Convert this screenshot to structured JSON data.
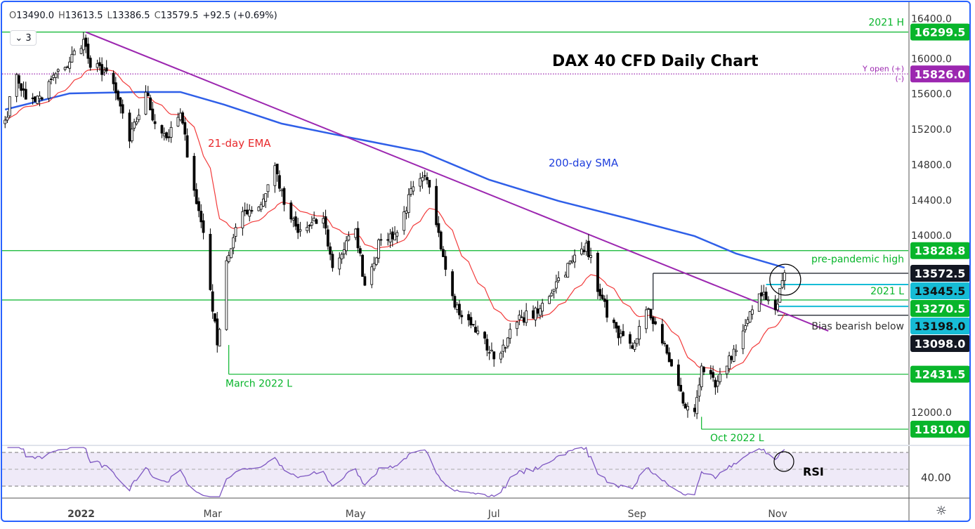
{
  "header": {
    "open_label": "O",
    "open": "13490.0",
    "high_label": "H",
    "high": "13613.5",
    "low_label": "L",
    "low": "13386.5",
    "close_label": "C",
    "close": "13579.5",
    "change": "+92.5 (+0.69%)",
    "indicators_count": "3"
  },
  "colors": {
    "green": "#08b52b",
    "cyan": "#16bcd6",
    "purple": "#9c27b0",
    "black": "#131722",
    "ema": "#f23b3b",
    "sma": "#2f5fe8",
    "trendline": "#9c27b0",
    "rsi": "#7e57c2",
    "rsi_band": "#efeaf8"
  },
  "chart_data": {
    "type": "candlestick",
    "title": "DAX 40 CFD Daily Chart",
    "last_candle": {
      "date": "2022-11-04",
      "open": 13490.0,
      "high": 13613.5,
      "low": 13386.5,
      "close": 13579.5
    },
    "close_path": [
      [
        "2021-12-01",
        15304
      ],
      [
        "2021-12-06",
        15820
      ],
      [
        "2021-12-10",
        15540
      ],
      [
        "2021-12-17",
        15540
      ],
      [
        "2021-12-20",
        15740
      ],
      [
        "2021-12-27",
        15900
      ],
      [
        "2022-01-04",
        16217
      ],
      [
        "2022-01-07",
        15900
      ],
      [
        "2022-01-14",
        15860
      ],
      [
        "2022-01-21",
        15383
      ],
      [
        "2022-01-24",
        15066
      ],
      [
        "2022-01-31",
        15620
      ],
      [
        "2022-02-04",
        15264
      ],
      [
        "2022-02-10",
        15105
      ],
      [
        "2022-02-15",
        15383
      ],
      [
        "2022-02-21",
        14510
      ],
      [
        "2022-02-25",
        14033
      ],
      [
        "2022-03-03",
        12762
      ],
      [
        "2022-03-07",
        13715
      ],
      [
        "2022-03-14",
        14270
      ],
      [
        "2022-03-22",
        14350
      ],
      [
        "2022-03-28",
        14790
      ],
      [
        "2022-04-01",
        14350
      ],
      [
        "2022-04-07",
        14033
      ],
      [
        "2022-04-18",
        14192
      ],
      [
        "2022-04-22",
        13636
      ],
      [
        "2022-05-02",
        14073
      ],
      [
        "2022-05-06",
        13437
      ],
      [
        "2022-05-13",
        13954
      ],
      [
        "2022-05-20",
        14033
      ],
      [
        "2022-05-27",
        14550
      ],
      [
        "2022-06-02",
        14629
      ],
      [
        "2022-06-07",
        14033
      ],
      [
        "2022-06-13",
        13318
      ],
      [
        "2022-06-17",
        13080
      ],
      [
        "2022-06-24",
        12921
      ],
      [
        "2022-07-01",
        12604
      ],
      [
        "2022-07-07",
        12842
      ],
      [
        "2022-07-13",
        13080
      ],
      [
        "2022-07-20",
        13120
      ],
      [
        "2022-07-28",
        13477
      ],
      [
        "2022-08-04",
        13715
      ],
      [
        "2022-08-10",
        13914
      ],
      [
        "2022-08-16",
        13318
      ],
      [
        "2022-08-24",
        12842
      ],
      [
        "2022-08-30",
        12723
      ],
      [
        "2022-09-05",
        13160
      ],
      [
        "2022-09-09",
        13000
      ],
      [
        "2022-09-16",
        12524
      ],
      [
        "2022-09-22",
        12047
      ],
      [
        "2022-09-26",
        12008
      ],
      [
        "2022-09-29",
        12524
      ],
      [
        "2022-10-05",
        12286
      ],
      [
        "2022-10-10",
        12524
      ],
      [
        "2022-10-17",
        12921
      ],
      [
        "2022-10-21",
        13160
      ],
      [
        "2022-10-26",
        13358
      ],
      [
        "2022-10-31",
        13160
      ],
      [
        "2022-11-03",
        13490
      ],
      [
        "2022-11-04",
        13579.5
      ]
    ],
    "sma200": {
      "name": "200-day SMA",
      "points": [
        [
          "2021-12-01",
          15423
        ],
        [
          "2021-12-29",
          15606
        ],
        [
          "2022-01-28",
          15622
        ],
        [
          "2022-02-15",
          15622
        ],
        [
          "2022-03-06",
          15479
        ],
        [
          "2022-03-31",
          15264
        ],
        [
          "2022-04-30",
          15105
        ],
        [
          "2022-05-31",
          14946
        ],
        [
          "2022-06-29",
          14629
        ],
        [
          "2022-07-29",
          14390
        ],
        [
          "2022-08-28",
          14192
        ],
        [
          "2022-09-26",
          13993
        ],
        [
          "2022-10-14",
          13795
        ],
        [
          "2022-11-04",
          13636
        ]
      ]
    },
    "ema21": {
      "name": "21-day EMA",
      "period": 21
    },
    "trendline": {
      "from": [
        "2022-01-05",
        16299.5
      ],
      "to": [
        "2022-11-23",
        12921
      ]
    },
    "levels": [
      {
        "price": 16299.5,
        "label": "16299.5",
        "color": "green",
        "text": "2021 H",
        "from": null
      },
      {
        "price": 15826.0,
        "label": "15826.0",
        "color": "purple",
        "text": "Y open (+)",
        "text2": "(-)",
        "style": "dotted",
        "from": null
      },
      {
        "price": 13828.8,
        "label": "13828.8",
        "color": "green",
        "text": "pre-pandemic high",
        "from": null
      },
      {
        "price": 13572.5,
        "label": "13572.5",
        "color": "black",
        "text": "",
        "from": "2022-09-08"
      },
      {
        "price": 13445.5,
        "label": "13445.5",
        "color": "cyan",
        "text": "2021 L",
        "from": "2022-10-27"
      },
      {
        "price": 13270.5,
        "label": "13270.5",
        "color": "green",
        "text": "",
        "from": null
      },
      {
        "price": 13198.0,
        "label": "13198.0",
        "color": "cyan",
        "text": "",
        "from": "2022-11-01"
      },
      {
        "price": 13098.0,
        "label": "13098.0",
        "color": "black",
        "text": "Bias bearish below",
        "from": "2022-11-01"
      },
      {
        "price": 12431.5,
        "label": "12431.5",
        "color": "green",
        "text": "March 2022 L",
        "from": "2022-03-08"
      },
      {
        "price": 11810.0,
        "label": "11810.0",
        "color": "green",
        "text": "Oct 2022 L",
        "from": "2022-09-29"
      }
    ],
    "annotations": {
      "ema_label": "21-day EMA",
      "sma_label": "200-day SMA",
      "rsi_label": "RSI"
    },
    "y_ticks": [
      "16400.0",
      "16000.0",
      "15600.0",
      "15200.0",
      "14800.0",
      "14400.0",
      "14000.0",
      "12000.0"
    ],
    "ylim": [
      11700,
      16500
    ],
    "x_ticks": [
      [
        "2022-01-03",
        "2022"
      ],
      [
        "2022-03-01",
        "Mar"
      ],
      [
        "2022-05-02",
        "May"
      ],
      [
        "2022-07-01",
        "Jul"
      ],
      [
        "2022-09-01",
        "Sep"
      ],
      [
        "2022-11-01",
        "Nov"
      ]
    ],
    "rsi": {
      "period": 14,
      "levels": [
        70,
        50,
        30
      ],
      "tick_label": "40.00",
      "tick_value": 40
    }
  }
}
